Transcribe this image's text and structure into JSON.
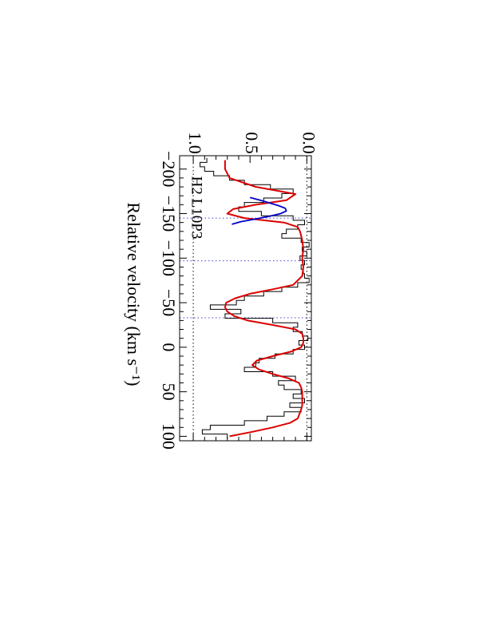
{
  "chart_data": {
    "type": "line",
    "orientation": "rotated-90-clockwise",
    "title": "",
    "annotation": "H2 L10P3",
    "xlabel": "Relative velocity (km s⁻¹)",
    "ylabel": "",
    "xlim": [
      -215,
      105
    ],
    "ylim": [
      -0.04,
      1.12
    ],
    "x_ticks": [
      -200,
      -150,
      -100,
      -50,
      0,
      50,
      100
    ],
    "x_tick_labels": [
      "−200",
      "−150",
      "−100",
      "−50",
      "0",
      "50",
      "100"
    ],
    "y_ticks": [
      0.0,
      0.5,
      1.0
    ],
    "y_tick_labels": [
      "0.0",
      "0.5",
      "1.0"
    ],
    "continuum_level": 1.0,
    "zero_level": 0.0,
    "component_markers_x": [
      -145,
      -97,
      -33
    ],
    "series": [
      {
        "role": "data",
        "style": "histogram",
        "color": "#000000",
        "x": [
          -210,
          -205,
          -200,
          -195,
          -190,
          -185,
          -180,
          -175,
          -170,
          -165,
          -160,
          -155,
          -150,
          -145,
          -140,
          -135,
          -130,
          -125,
          -120,
          -115,
          -110,
          -105,
          -100,
          -95,
          -90,
          -85,
          -80,
          -75,
          -70,
          -65,
          -60,
          -55,
          -50,
          -45,
          -40,
          -35,
          -30,
          -25,
          -20,
          -15,
          -10,
          -5,
          0,
          5,
          10,
          15,
          20,
          25,
          30,
          35,
          40,
          45,
          50,
          55,
          60,
          65,
          70,
          75,
          80,
          85,
          90,
          95,
          100
        ],
        "y": [
          0.88,
          0.94,
          0.9,
          0.82,
          0.68,
          0.55,
          0.32,
          0.12,
          0.22,
          0.38,
          0.55,
          0.6,
          0.4,
          0.12,
          0.02,
          0.08,
          0.18,
          0.22,
          0.05,
          -0.02,
          0.04,
          0.0,
          0.06,
          0.02,
          0.05,
          0.03,
          0.02,
          -0.02,
          0.08,
          0.22,
          0.38,
          0.55,
          0.62,
          0.85,
          0.58,
          0.72,
          0.3,
          0.08,
          0.12,
          0.04,
          -0.01,
          0.07,
          0.02,
          0.12,
          0.28,
          0.42,
          0.45,
          0.55,
          0.3,
          0.1,
          0.25,
          0.2,
          0.05,
          0.12,
          0.02,
          0.15,
          0.05,
          0.2,
          0.35,
          0.55,
          0.85,
          0.92,
          0.7
        ]
      },
      {
        "role": "model",
        "style": "line",
        "color": "#dd0000",
        "x": [
          -210,
          -200,
          -190,
          -180,
          -172,
          -165,
          -160,
          -155,
          -150,
          -145,
          -140,
          -135,
          -130,
          -120,
          -110,
          -100,
          -90,
          -80,
          -70,
          -65,
          -60,
          -55,
          -50,
          -45,
          -40,
          -35,
          -30,
          -25,
          -20,
          -15,
          -10,
          -5,
          0,
          5,
          10,
          15,
          20,
          25,
          30,
          35,
          40,
          45,
          50,
          55,
          60,
          65,
          70,
          80,
          85,
          90,
          95,
          100
        ],
        "y": [
          0.72,
          0.72,
          0.68,
          0.45,
          0.1,
          0.18,
          0.45,
          0.65,
          0.7,
          0.55,
          0.2,
          0.08,
          0.06,
          0.04,
          0.03,
          0.04,
          0.03,
          0.04,
          0.12,
          0.3,
          0.5,
          0.63,
          0.71,
          0.72,
          0.7,
          0.64,
          0.52,
          0.3,
          0.1,
          0.04,
          0.03,
          0.03,
          0.05,
          0.14,
          0.3,
          0.44,
          0.48,
          0.42,
          0.3,
          0.16,
          0.07,
          0.05,
          0.04,
          0.04,
          0.04,
          0.04,
          0.05,
          0.08,
          0.15,
          0.3,
          0.48,
          0.68
        ]
      },
      {
        "role": "component",
        "style": "line",
        "color": "#0000cc",
        "x": [
          -168,
          -165,
          -162,
          -159,
          -156,
          -153,
          -150,
          -147,
          -144,
          -141,
          -138
        ],
        "y": [
          0.5,
          0.41,
          0.33,
          0.25,
          0.19,
          0.18,
          0.23,
          0.33,
          0.45,
          0.58,
          0.66
        ]
      }
    ]
  }
}
